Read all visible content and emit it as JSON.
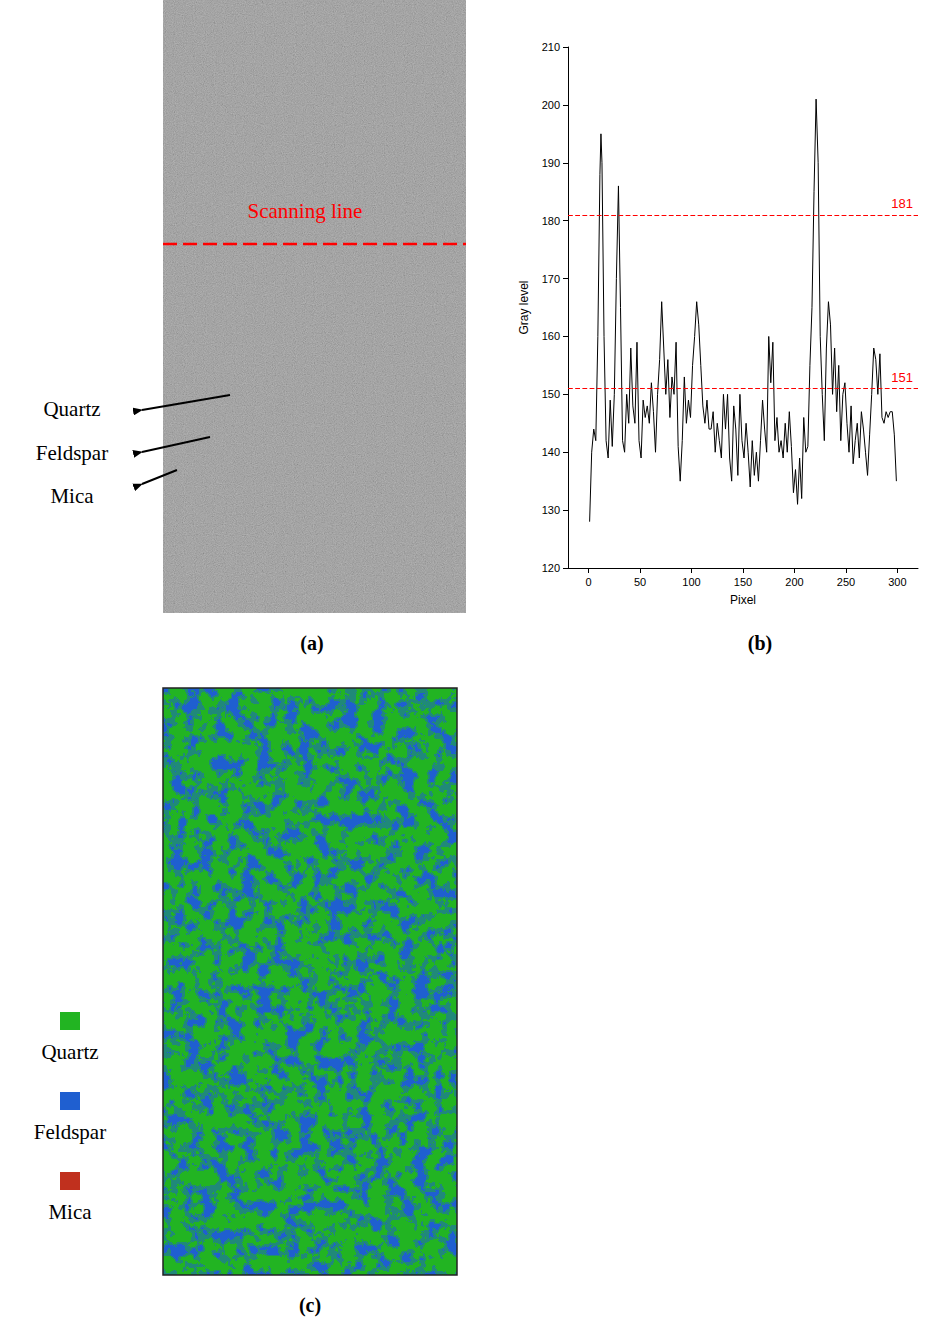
{
  "chart_data": {
    "type": "line",
    "color": "#000000",
    "xlabel": "Pixel",
    "ylabel": "Gray level",
    "x": [
      1,
      3,
      5,
      7,
      9,
      11,
      12,
      13,
      15,
      17,
      19,
      21,
      23,
      25,
      27,
      29,
      31,
      33,
      35,
      37,
      39,
      41,
      43,
      45,
      47,
      49,
      51,
      53,
      55,
      57,
      59,
      61,
      63,
      65,
      67,
      69,
      71,
      73,
      75,
      77,
      79,
      81,
      83,
      85,
      87,
      89,
      91,
      93,
      95,
      97,
      99,
      101,
      103,
      105,
      107,
      109,
      111,
      113,
      115,
      117,
      119,
      121,
      123,
      125,
      127,
      129,
      131,
      133,
      135,
      137,
      139,
      141,
      143,
      145,
      147,
      149,
      151,
      153,
      155,
      157,
      159,
      161,
      163,
      165,
      167,
      169,
      171,
      173,
      175,
      177,
      179,
      181,
      183,
      185,
      187,
      189,
      191,
      193,
      195,
      197,
      199,
      201,
      203,
      205,
      207,
      209,
      211,
      213,
      215,
      217,
      219,
      221,
      223,
      225,
      227,
      229,
      231,
      233,
      235,
      237,
      239,
      241,
      243,
      245,
      247,
      249,
      251,
      253,
      255,
      257,
      259,
      261,
      263,
      265,
      267,
      269,
      271,
      273,
      275,
      277,
      279,
      281,
      283,
      285,
      287,
      289,
      291,
      293,
      295,
      297,
      299
    ],
    "values": [
      128,
      140,
      144,
      142,
      160,
      188,
      195,
      190,
      160,
      142,
      139,
      149,
      141,
      150,
      170,
      186,
      165,
      142,
      140,
      150,
      145,
      158,
      148,
      145,
      159,
      142,
      139,
      149,
      146,
      148,
      145,
      152,
      147,
      140,
      150,
      156,
      166,
      158,
      150,
      156,
      146,
      153,
      150,
      159,
      141,
      135,
      142,
      153,
      145,
      149,
      146,
      155,
      160,
      166,
      162,
      155,
      148,
      145,
      149,
      144,
      144,
      147,
      140,
      145,
      142,
      139,
      150,
      144,
      150,
      139,
      135,
      148,
      144,
      136,
      150,
      142,
      139,
      145,
      140,
      134,
      142,
      136,
      140,
      135,
      142,
      149,
      144,
      140,
      160,
      152,
      159,
      142,
      146,
      140,
      142,
      139,
      145,
      140,
      147,
      141,
      133,
      137,
      131,
      139,
      132,
      146,
      140,
      141,
      155,
      165,
      185,
      201,
      190,
      160,
      150,
      142,
      158,
      166,
      162,
      150,
      158,
      147,
      155,
      142,
      150,
      152,
      145,
      140,
      148,
      138,
      142,
      145,
      139,
      147,
      144,
      140,
      136,
      143,
      150,
      158,
      156,
      150,
      157,
      146,
      145,
      147,
      146,
      147,
      147,
      143,
      135
    ],
    "xlim": [
      -20,
      320
    ],
    "xticks": [
      0,
      50,
      100,
      150,
      200,
      250,
      300
    ],
    "ylim": [
      120,
      210
    ],
    "yticks": [
      120,
      130,
      140,
      150,
      160,
      170,
      180,
      190,
      200,
      210
    ],
    "reference_lines": [
      {
        "value": 181,
        "label": "181",
        "color": "#ff0000",
        "line_style": "dashed"
      },
      {
        "value": 151,
        "label": "151",
        "color": "#ff0000",
        "line_style": "dashed"
      }
    ],
    "grid": false
  },
  "panels": {
    "a": {
      "label": "(a)",
      "annotation": {
        "text": "Scanning line",
        "color": "#ff0000"
      },
      "arrow_labels": [
        "Quartz",
        "Feldspar",
        "Mica"
      ]
    },
    "b": {
      "label": "(b)"
    },
    "c": {
      "label": "(c)",
      "legend": [
        {
          "name": "Quartz",
          "color": "#22b422"
        },
        {
          "name": "Feldspar",
          "color": "#1f5fd0"
        },
        {
          "name": "Mica",
          "color": "#c0301e"
        }
      ]
    }
  }
}
